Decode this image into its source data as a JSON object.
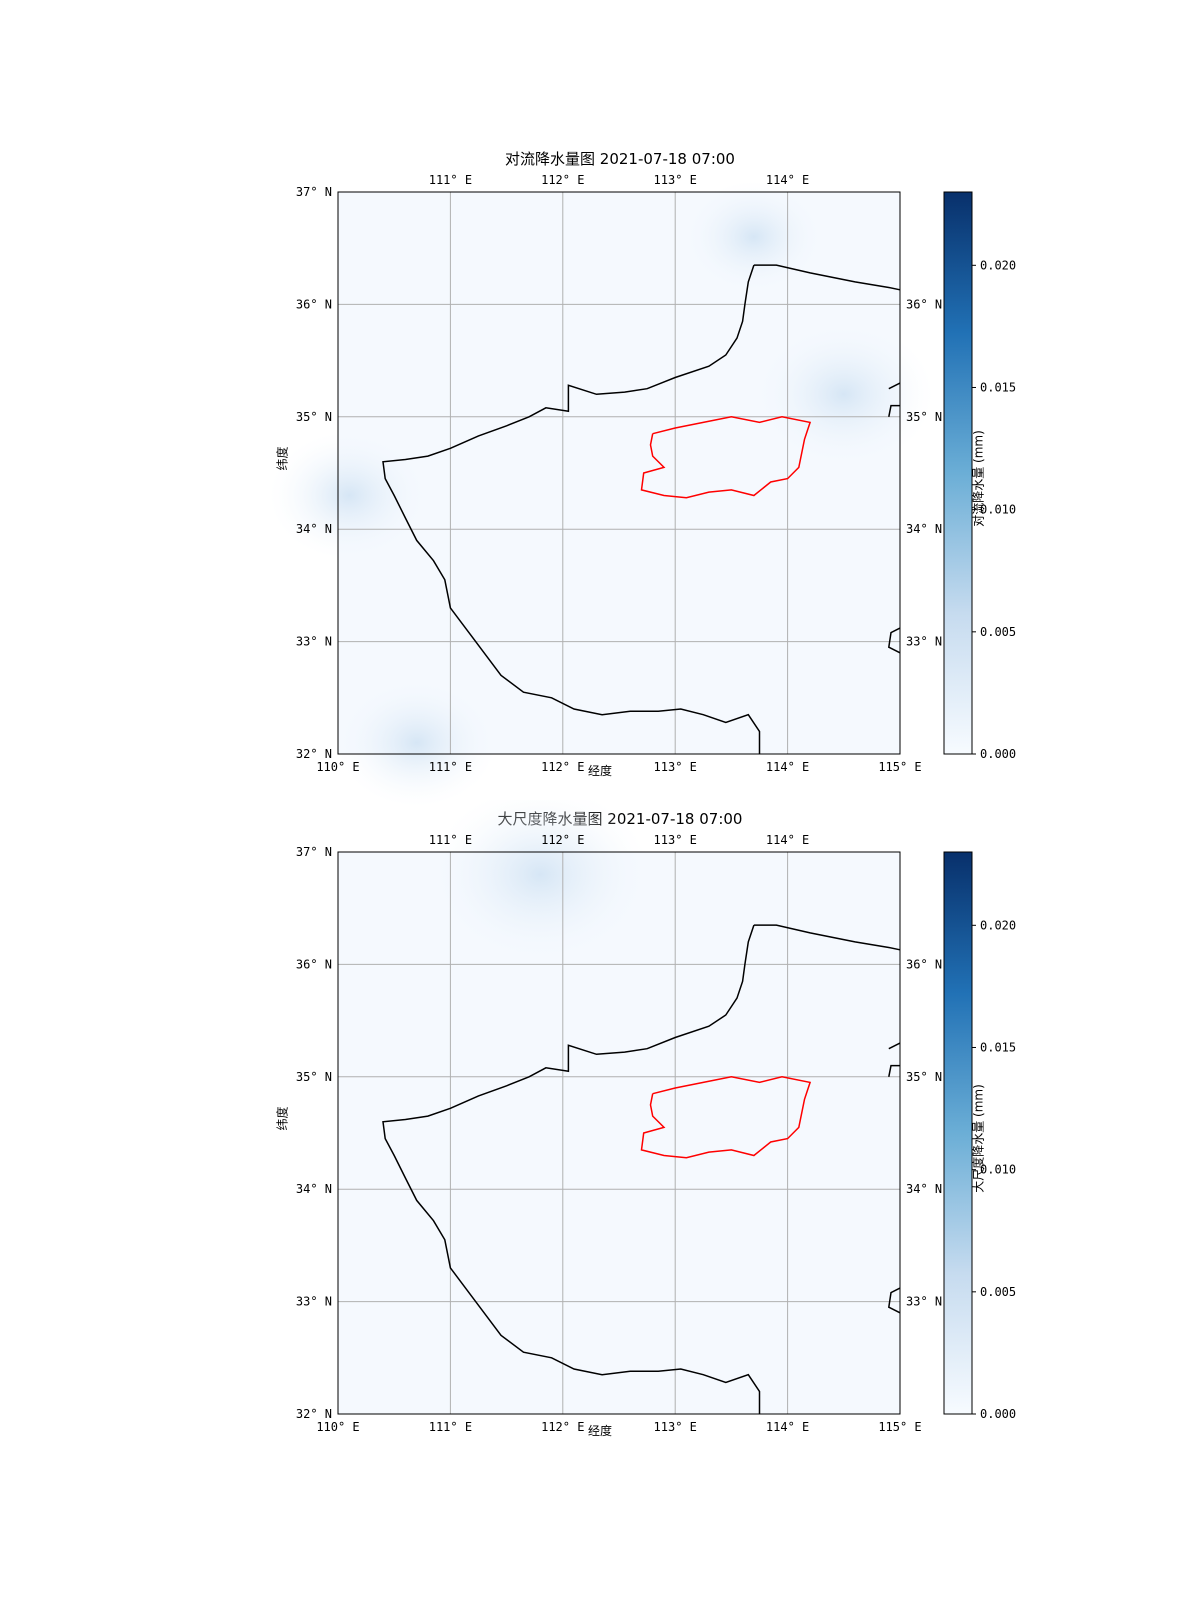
{
  "panels": [
    {
      "title": "对流降水量图 2021-07-18 07:00",
      "xlabel": "经度",
      "ylabel": "纬度",
      "colorbar_label": "对流降水量 (mm)"
    },
    {
      "title": "大尺度降水量图 2021-07-18 07:00",
      "xlabel": "经度",
      "ylabel": "纬度",
      "colorbar_label": "大尺度降水量 (mm)"
    }
  ],
  "map_axes": {
    "lon_range": [
      110,
      115
    ],
    "lat_range": [
      32,
      37
    ],
    "top_lon_ticks": [
      "111° E",
      "112° E",
      "113° E",
      "114° E"
    ],
    "bottom_lon_ticks": [
      "110° E",
      "111° E",
      "112° E",
      "113° E",
      "114° E",
      "115° E"
    ],
    "left_lat_ticks": [
      "32° N",
      "33° N",
      "34° N",
      "35° N",
      "36° N",
      "37° N"
    ],
    "right_lat_ticks": [
      "33° N",
      "34° N",
      "35° N",
      "36° N"
    ]
  },
  "colorbar": {
    "ticks": [
      "0.000",
      "0.005",
      "0.010",
      "0.015",
      "0.020"
    ],
    "colormap": "Blues",
    "range": [
      0,
      0.023
    ]
  },
  "colors": {
    "boundary": "#000000",
    "highlight_region": "#ff0000",
    "gridline": "#b0b0b0",
    "background_field": "#f5f9fe"
  }
}
